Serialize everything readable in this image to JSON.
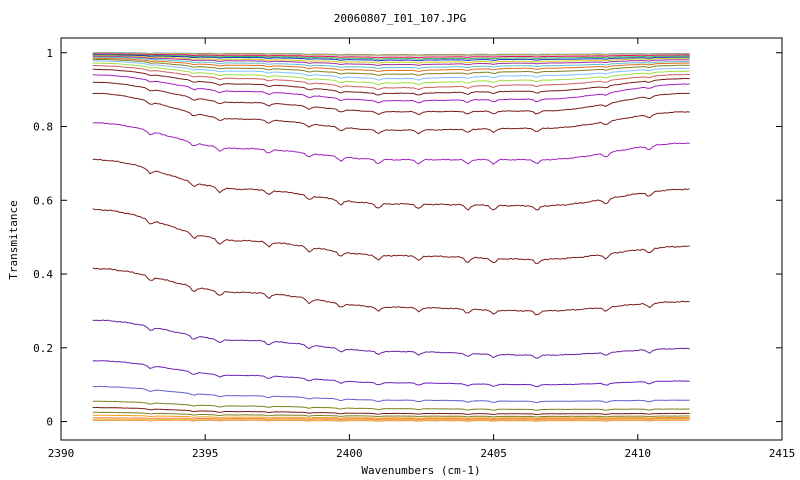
{
  "chart_data": {
    "type": "line",
    "title": "20060807_I01_107.JPG",
    "xlabel": "Wavenumbers (cm-1)",
    "ylabel": "Transmitance",
    "xlim": [
      2390,
      2415
    ],
    "ylim": [
      -0.05,
      1.04
    ],
    "xticks": [
      2390,
      2395,
      2400,
      2405,
      2410,
      2415
    ],
    "yticks": [
      0,
      0.2,
      0.4,
      0.6,
      0.8,
      1
    ],
    "xtick_labels": [
      "2390",
      "2395",
      "2400",
      "2405",
      "2410",
      "2415"
    ],
    "ytick_labels": [
      "0",
      "0.2",
      "0.4",
      "0.6",
      "0.8",
      "1"
    ],
    "grid": false,
    "legend": "none",
    "x_range": [
      2391.1,
      2411.8
    ],
    "series": [
      {
        "color": "#26a0c8",
        "values": [
          1.0,
          0.998,
          0.995,
          0.996,
          0.998
        ]
      },
      {
        "color": "#e0a020",
        "values": [
          0.999,
          0.997,
          0.994,
          0.995,
          0.997
        ]
      },
      {
        "color": "#c0c0c0",
        "values": [
          0.998,
          0.995,
          0.992,
          0.993,
          0.996
        ]
      },
      {
        "color": "#e81060",
        "values": [
          0.997,
          0.993,
          0.988,
          0.99,
          0.994
        ]
      },
      {
        "color": "#30c060",
        "values": [
          0.995,
          0.99,
          0.984,
          0.986,
          0.991
        ]
      },
      {
        "color": "#2030c0",
        "values": [
          0.994,
          0.987,
          0.98,
          0.982,
          0.988
        ]
      },
      {
        "color": "#d0d020",
        "values": [
          0.992,
          0.982,
          0.974,
          0.977,
          0.985
        ]
      },
      {
        "color": "#a030a0",
        "values": [
          0.99,
          0.978,
          0.968,
          0.972,
          0.981
        ]
      },
      {
        "color": "#60c0d0",
        "values": [
          0.988,
          0.972,
          0.96,
          0.965,
          0.976
        ]
      },
      {
        "color": "#e07020",
        "values": [
          0.985,
          0.966,
          0.952,
          0.958,
          0.972
        ]
      },
      {
        "color": "#808020",
        "values": [
          0.982,
          0.958,
          0.942,
          0.949,
          0.966
        ]
      },
      {
        "color": "#80c0ff",
        "values": [
          0.978,
          0.95,
          0.93,
          0.938,
          0.958
        ]
      },
      {
        "color": "#a0e040",
        "values": [
          0.972,
          0.94,
          0.918,
          0.926,
          0.95
        ]
      },
      {
        "color": "#d06060",
        "values": [
          0.965,
          0.93,
          0.905,
          0.913,
          0.941
        ]
      },
      {
        "color": "#7b1b1b",
        "values": [
          0.955,
          0.915,
          0.89,
          0.896,
          0.93
        ]
      },
      {
        "color": "#a020c0",
        "values": [
          0.94,
          0.895,
          0.87,
          0.874,
          0.915
        ]
      },
      {
        "color": "#7b1b1b",
        "values": [
          0.92,
          0.865,
          0.84,
          0.842,
          0.89
        ]
      },
      {
        "color": "#7b1b1b",
        "values": [
          0.89,
          0.82,
          0.79,
          0.795,
          0.84
        ]
      },
      {
        "color": "#a020c0",
        "values": [
          0.81,
          0.74,
          0.71,
          0.71,
          0.755
        ]
      },
      {
        "color": "#7b1b1b",
        "values": [
          0.71,
          0.63,
          0.59,
          0.585,
          0.63
        ]
      },
      {
        "color": "#7b1b1b",
        "values": [
          0.575,
          0.49,
          0.45,
          0.44,
          0.475
        ]
      },
      {
        "color": "#7b1b1b",
        "values": [
          0.415,
          0.35,
          0.31,
          0.3,
          0.325
        ]
      },
      {
        "color": "#6a20a0",
        "values": [
          0.275,
          0.22,
          0.19,
          0.18,
          0.198
        ]
      },
      {
        "color": "#6a20c0",
        "values": [
          0.165,
          0.125,
          0.105,
          0.1,
          0.11
        ]
      },
      {
        "color": "#6060d0",
        "values": [
          0.095,
          0.07,
          0.058,
          0.055,
          0.058
        ]
      },
      {
        "color": "#808020",
        "values": [
          0.055,
          0.042,
          0.035,
          0.033,
          0.034
        ]
      },
      {
        "color": "#7b1b1b",
        "values": [
          0.038,
          0.027,
          0.022,
          0.021,
          0.022
        ]
      },
      {
        "color": "#808020",
        "values": [
          0.025,
          0.018,
          0.015,
          0.014,
          0.015
        ]
      },
      {
        "color": "#f0a020",
        "values": [
          0.017,
          0.012,
          0.01,
          0.01,
          0.011
        ]
      },
      {
        "color": "#f08040",
        "values": [
          0.01,
          0.008,
          0.007,
          0.007,
          0.008
        ]
      },
      {
        "color": "#f0c040",
        "values": [
          0.006,
          0.005,
          0.004,
          0.004,
          0.005
        ]
      },
      {
        "color": "#f0a060",
        "values": [
          0.003,
          0.003,
          0.002,
          0.002,
          0.003
        ]
      }
    ]
  }
}
